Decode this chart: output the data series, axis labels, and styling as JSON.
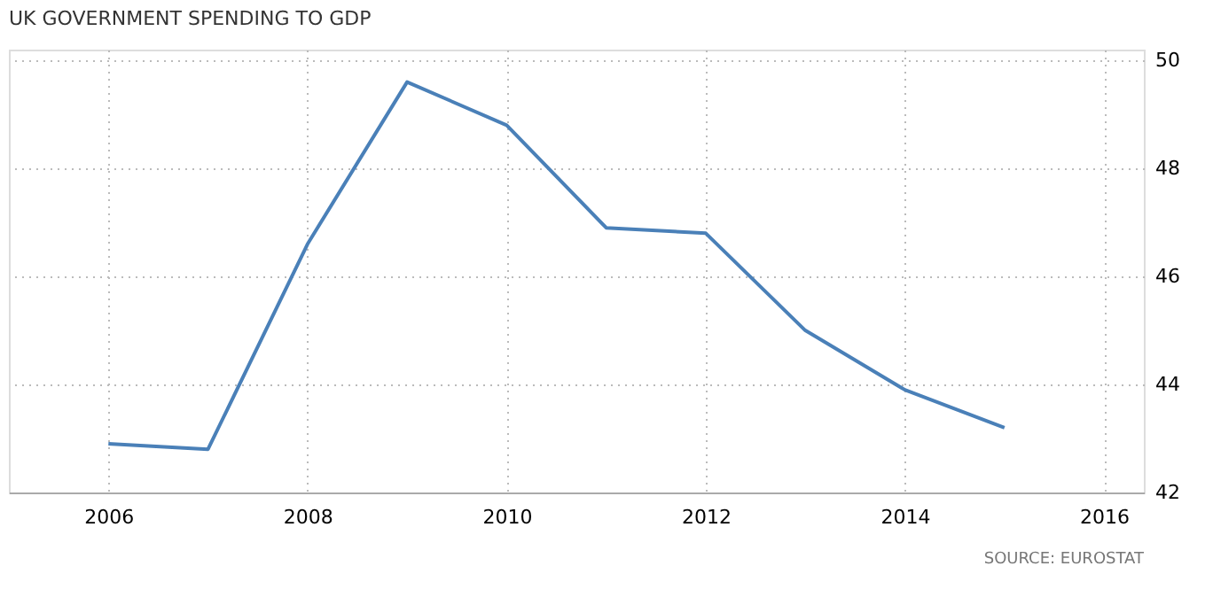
{
  "chart_data": {
    "type": "line",
    "title": "UK GOVERNMENT SPENDING TO GDP",
    "x": [
      2006,
      2007,
      2008,
      2009,
      2010,
      2011,
      2012,
      2013,
      2014,
      2015
    ],
    "series": [
      {
        "color": "#4a80b8",
        "values": [
          42.9,
          42.8,
          46.6,
          49.6,
          48.8,
          46.9,
          46.8,
          45.0,
          43.9,
          43.2
        ]
      }
    ],
    "xlim": [
      2005,
      2016.4
    ],
    "xticks": [
      2006,
      2008,
      2010,
      2012,
      2014,
      2016
    ],
    "ylim": [
      42,
      50.2
    ],
    "yticks": [
      42,
      44,
      46,
      48,
      50
    ],
    "grid": true,
    "marker": "none",
    "line_style": "solid",
    "annotations": [
      "SOURCE: EUROSTAT"
    ]
  }
}
